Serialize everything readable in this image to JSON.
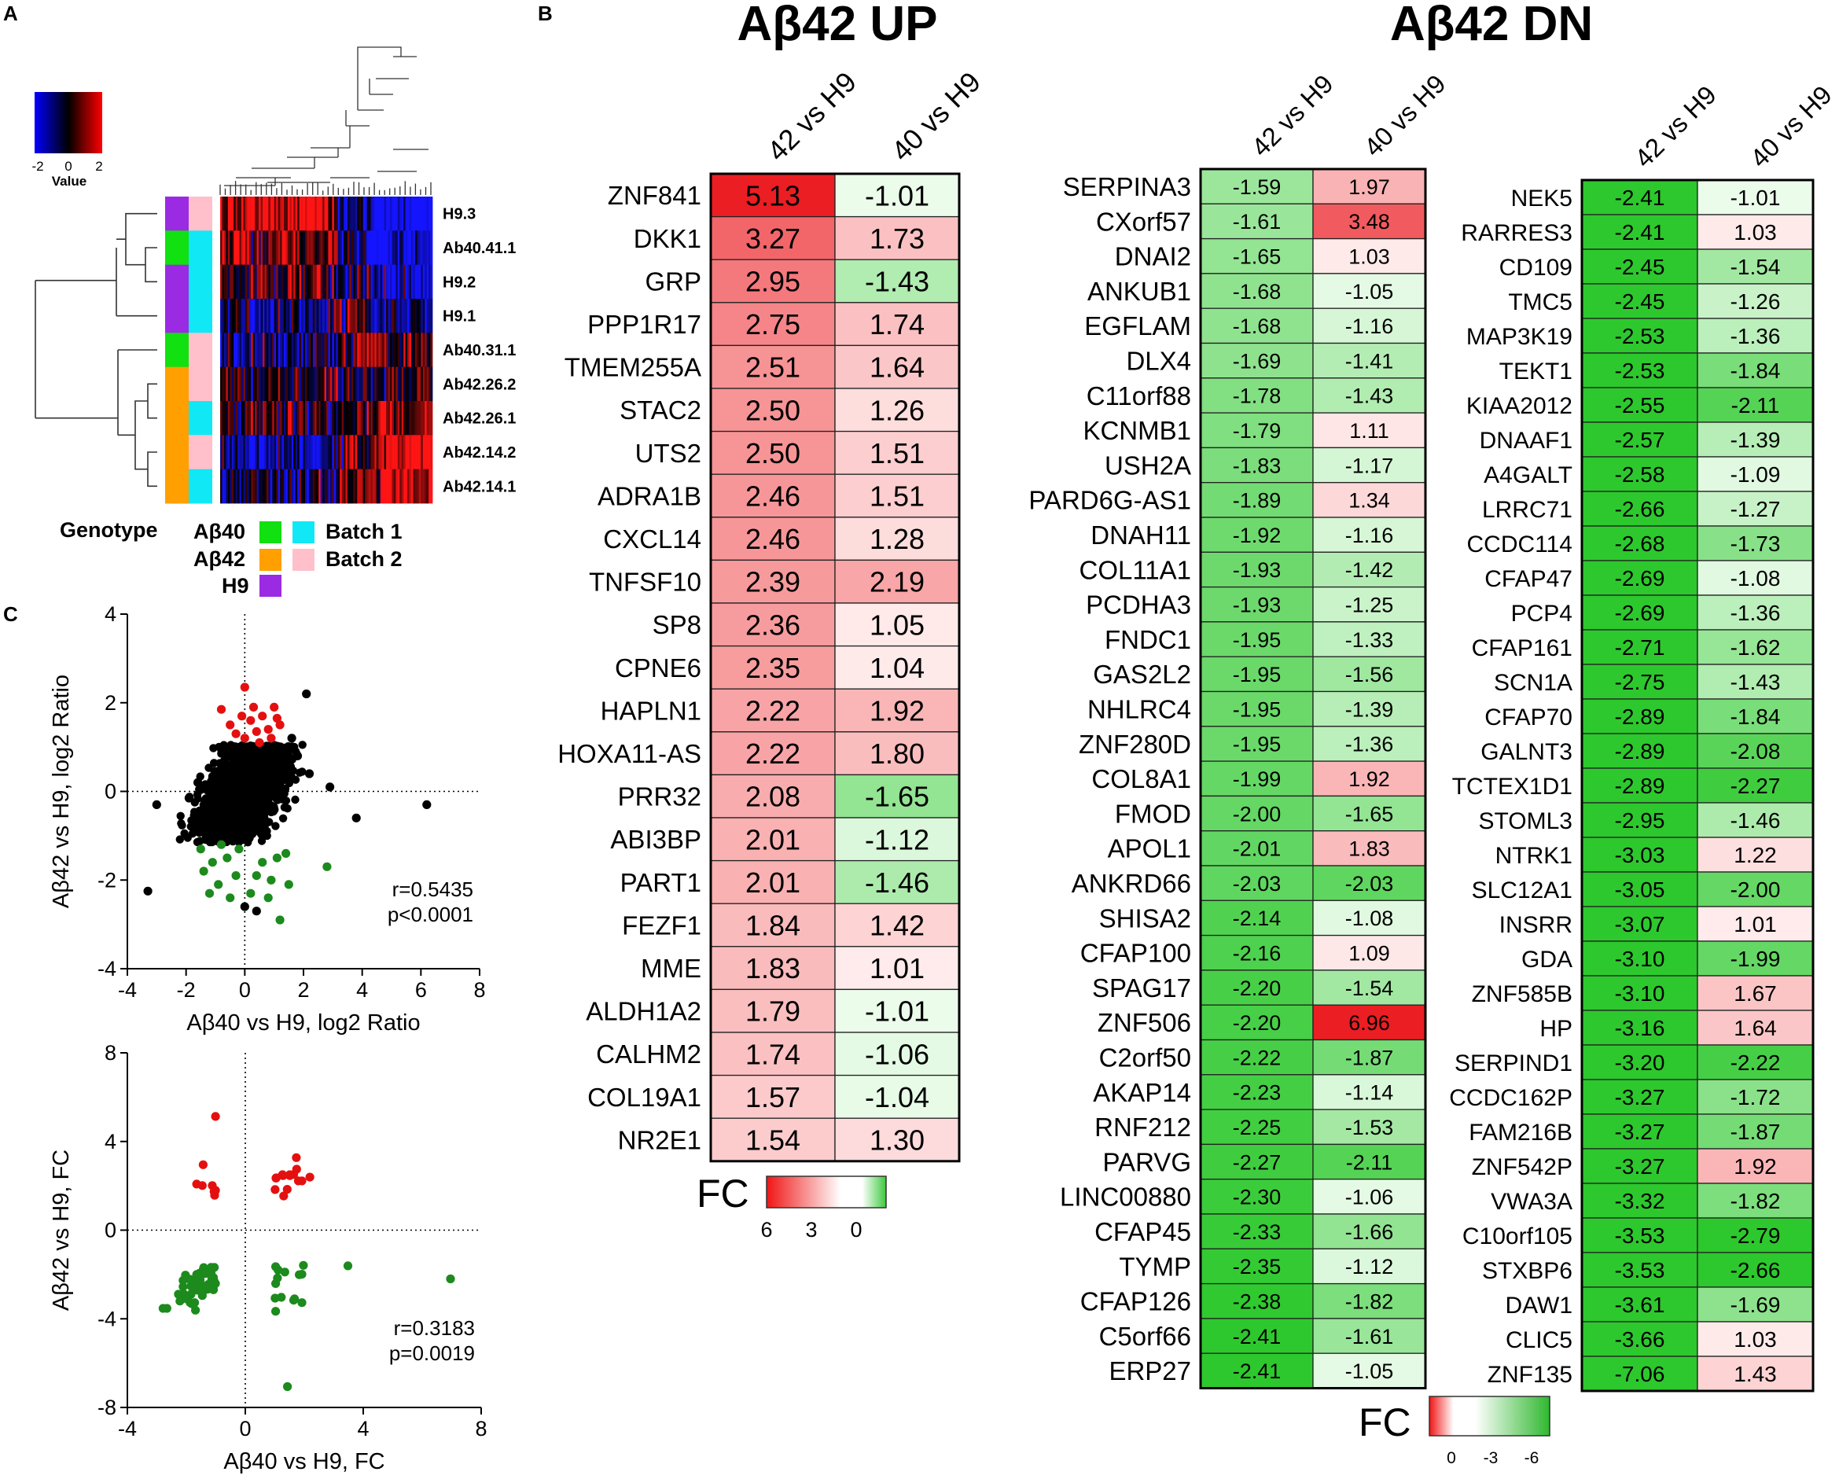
{
  "panels": {
    "a": "A",
    "b": "B",
    "c": "C"
  },
  "colors": {
    "blue": "#1a1aff",
    "red": "#ff1a1a",
    "green": "#1f8a1f",
    "purple": "#9a2be2",
    "orange": "#ffa000",
    "cyan": "#11e8f5",
    "pink": "#ffc0cb",
    "lime": "#11e011"
  },
  "chart_data": [
    {
      "type": "heatmap",
      "id": "panel_a",
      "colorbar": {
        "label": "Value",
        "ticks": [
          "-2",
          "0",
          "2"
        ],
        "range": [
          -2,
          2
        ]
      },
      "rows": [
        "H9.3",
        "Ab40.41.1",
        "H9.2",
        "H9.1",
        "Ab40.31.1",
        "Ab42.26.2",
        "Ab42.26.1",
        "Ab42.14.2",
        "Ab42.14.1"
      ],
      "row_genotype": [
        "H9",
        "Aβ40",
        "H9",
        "H9",
        "Aβ40",
        "Aβ42",
        "Aβ42",
        "Aβ42",
        "Aβ42"
      ],
      "row_batch": [
        "Batch 2",
        "Batch 1",
        "Batch 1",
        "Batch 1",
        "Batch 2",
        "Batch 2",
        "Batch 1",
        "Batch 2",
        "Batch 1"
      ],
      "legend": {
        "genotype_title": "Genotype",
        "genotypes": [
          "Aβ40",
          "Aβ42",
          "H9"
        ],
        "batches": [
          "Batch 1",
          "Batch 2"
        ]
      }
    },
    {
      "type": "table",
      "id": "b_up",
      "title": "Aβ42 UP",
      "columns": [
        "42 vs H9",
        "40 vs H9"
      ],
      "genes": [
        "ZNF841",
        "DKK1",
        "GRP",
        "PPP1R17",
        "TMEM255A",
        "STAC2",
        "UTS2",
        "ADRA1B",
        "CXCL14",
        "TNFSF10",
        "SP8",
        "CPNE6",
        "HAPLN1",
        "HOXA11-AS",
        "PRR32",
        "ABI3BP",
        "PART1",
        "FEZF1",
        "MME",
        "ALDH1A2",
        "CALHM2",
        "COL19A1",
        "NR2E1"
      ],
      "col1": [
        "5.13",
        "3.27",
        "2.95",
        "2.75",
        "2.51",
        "2.50",
        "2.50",
        "2.46",
        "2.46",
        "2.39",
        "2.36",
        "2.35",
        "2.22",
        "2.22",
        "2.08",
        "2.01",
        "2.01",
        "1.84",
        "1.83",
        "1.79",
        "1.74",
        "1.57",
        "1.54"
      ],
      "col2": [
        "-1.01",
        "1.73",
        "-1.43",
        "1.74",
        "1.64",
        "1.26",
        "1.51",
        "1.51",
        "1.28",
        "2.19",
        "1.05",
        "1.04",
        "1.92",
        "1.80",
        "-1.65",
        "-1.12",
        "-1.46",
        "1.42",
        "1.01",
        "-1.01",
        "-1.06",
        "-1.04",
        "1.30"
      ],
      "legend": {
        "label": "FC",
        "ticks": [
          "6",
          "3",
          "0"
        ]
      }
    },
    {
      "type": "table",
      "id": "b_dn1",
      "title": "Aβ42 DN",
      "columns": [
        "42 vs H9",
        "40 vs H9"
      ],
      "genes": [
        "SERPINA3",
        "CXorf57",
        "DNAI2",
        "ANKUB1",
        "EGFLAM",
        "DLX4",
        "C11orf88",
        "KCNMB1",
        "USH2A",
        "PARD6G-AS1",
        "DNAH11",
        "COL11A1",
        "PCDHA3",
        "FNDC1",
        "GAS2L2",
        "NHLRC4",
        "ZNF280D",
        "COL8A1",
        "FMOD",
        "APOL1",
        "ANKRD66",
        "SHISA2",
        "CFAP100",
        "SPAG17",
        "ZNF506",
        "C2orf50",
        "AKAP14",
        "RNF212",
        "PARVG",
        "LINC00880",
        "CFAP45",
        "TYMP",
        "CFAP126",
        "C5orf66",
        "ERP27"
      ],
      "col1": [
        "-1.59",
        "-1.61",
        "-1.65",
        "-1.68",
        "-1.68",
        "-1.69",
        "-1.78",
        "-1.79",
        "-1.83",
        "-1.89",
        "-1.92",
        "-1.93",
        "-1.93",
        "-1.95",
        "-1.95",
        "-1.95",
        "-1.95",
        "-1.99",
        "-2.00",
        "-2.01",
        "-2.03",
        "-2.14",
        "-2.16",
        "-2.20",
        "-2.20",
        "-2.22",
        "-2.23",
        "-2.25",
        "-2.27",
        "-2.30",
        "-2.33",
        "-2.35",
        "-2.38",
        "-2.41",
        "-2.41"
      ],
      "col2": [
        "1.97",
        "3.48",
        "1.03",
        "-1.05",
        "-1.16",
        "-1.41",
        "-1.43",
        "1.11",
        "-1.17",
        "1.34",
        "-1.16",
        "-1.42",
        "-1.25",
        "-1.33",
        "-1.56",
        "-1.39",
        "-1.36",
        "1.92",
        "-1.65",
        "1.83",
        "-2.03",
        "-1.08",
        "1.09",
        "-1.54",
        "6.96",
        "-1.87",
        "-1.14",
        "-1.53",
        "-2.11",
        "-1.06",
        "-1.66",
        "-1.12",
        "-1.82",
        "-1.61",
        "-1.05"
      ],
      "legend": {
        "label": "FC",
        "ticks": [
          "0",
          "-3",
          "-6"
        ]
      }
    },
    {
      "type": "table",
      "id": "b_dn2",
      "columns": [
        "42 vs H9",
        "40 vs H9"
      ],
      "genes": [
        "NEK5",
        "RARRES3",
        "CD109",
        "TMC5",
        "MAP3K19",
        "TEKT1",
        "KIAA2012",
        "DNAAF1",
        "A4GALT",
        "LRRC71",
        "CCDC114",
        "CFAP47",
        "PCP4",
        "CFAP161",
        "SCN1A",
        "CFAP70",
        "GALNT3",
        "TCTEX1D1",
        "STOML3",
        "NTRK1",
        "SLC12A1",
        "INSRR",
        "GDA",
        "ZNF585B",
        "HP",
        "SERPIND1",
        "CCDC162P",
        "FAM216B",
        "ZNF542P",
        "VWA3A",
        "C10orf105",
        "STXBP6",
        "DAW1",
        "CLIC5",
        "ZNF135"
      ],
      "col1": [
        "-2.41",
        "-2.41",
        "-2.45",
        "-2.45",
        "-2.53",
        "-2.53",
        "-2.55",
        "-2.57",
        "-2.58",
        "-2.66",
        "-2.68",
        "-2.69",
        "-2.69",
        "-2.71",
        "-2.75",
        "-2.89",
        "-2.89",
        "-2.89",
        "-2.95",
        "-3.03",
        "-3.05",
        "-3.07",
        "-3.10",
        "-3.10",
        "-3.16",
        "-3.20",
        "-3.27",
        "-3.27",
        "-3.27",
        "-3.32",
        "-3.53",
        "-3.53",
        "-3.61",
        "-3.66",
        "-7.06"
      ],
      "col2": [
        "-1.01",
        "1.03",
        "-1.54",
        "-1.26",
        "-1.36",
        "-1.84",
        "-2.11",
        "-1.39",
        "-1.09",
        "-1.27",
        "-1.73",
        "-1.08",
        "-1.36",
        "-1.62",
        "-1.43",
        "-1.84",
        "-2.08",
        "-2.27",
        "-1.46",
        "1.22",
        "-2.00",
        "1.01",
        "-1.99",
        "1.67",
        "1.64",
        "-2.22",
        "-1.72",
        "-1.87",
        "1.92",
        "-1.82",
        "-2.79",
        "-2.66",
        "-1.69",
        "1.03",
        "1.43"
      ]
    },
    {
      "type": "scatter",
      "id": "c_top",
      "xlabel": "Aβ40 vs H9, log2 Ratio",
      "ylabel": "Aβ42 vs H9, log2 Ratio",
      "xlim": [
        -4,
        8
      ],
      "ylim": [
        -4,
        4
      ],
      "xticks": [
        "-4",
        "-2",
        "0",
        "2",
        "4",
        "6",
        "8"
      ],
      "yticks": [
        "-4",
        "-2",
        "0",
        "2",
        "4"
      ],
      "annotation": [
        "r=0.5435",
        "p<0.0001"
      ],
      "red_points": [
        [
          0,
          2.35
        ],
        [
          -0.8,
          1.85
        ],
        [
          -0.5,
          1.5
        ],
        [
          -0.3,
          1.3
        ],
        [
          0.2,
          1.6
        ],
        [
          0.4,
          1.35
        ],
        [
          0.6,
          1.7
        ],
        [
          0.8,
          1.4
        ],
        [
          1.0,
          1.9
        ],
        [
          1.2,
          1.5
        ],
        [
          0.0,
          1.2
        ],
        [
          0.5,
          1.1
        ],
        [
          -0.1,
          1.7
        ],
        [
          0.9,
          1.2
        ],
        [
          0.3,
          1.9
        ],
        [
          1.1,
          1.65
        ]
      ],
      "green_points": [
        [
          -1.4,
          -1.8
        ],
        [
          -1.1,
          -1.6
        ],
        [
          -0.9,
          -2.1
        ],
        [
          -0.6,
          -1.5
        ],
        [
          -0.3,
          -1.9
        ],
        [
          -1.2,
          -2.3
        ],
        [
          -0.5,
          -2.4
        ],
        [
          -0.2,
          -1.3
        ],
        [
          0.6,
          -1.6
        ],
        [
          0.9,
          -2.0
        ],
        [
          1.1,
          -1.5
        ],
        [
          0.8,
          -2.4
        ],
        [
          0.4,
          -1.9
        ],
        [
          1.4,
          -1.4
        ],
        [
          1.5,
          -2.1
        ],
        [
          2.8,
          -1.7
        ],
        [
          -1.5,
          -1.3
        ],
        [
          0.2,
          -2.3
        ],
        [
          -0.8,
          -1.2
        ],
        [
          1.2,
          -2.9
        ]
      ],
      "black_points": [
        [
          -3.3,
          -2.25
        ],
        [
          -3.0,
          -0.3
        ],
        [
          -1.9,
          -0.15
        ],
        [
          -1.6,
          0.2
        ],
        [
          -1.5,
          -0.6
        ],
        [
          2.1,
          2.2
        ],
        [
          2.9,
          0.1
        ],
        [
          3.8,
          -0.6
        ],
        [
          6.2,
          -0.3
        ],
        [
          0,
          -2.6
        ],
        [
          0.4,
          -2.7
        ],
        [
          -0.2,
          -1.0
        ],
        [
          1.6,
          1.2
        ],
        [
          1.8,
          0.8
        ],
        [
          2.2,
          0.4
        ]
      ]
    },
    {
      "type": "scatter",
      "id": "c_bottom",
      "xlabel": "Aβ40 vs H9, FC",
      "ylabel": "Aβ42 vs H9, FC",
      "xlim": [
        -4,
        8
      ],
      "ylim": [
        -8,
        8
      ],
      "xticks": [
        "-4",
        "0",
        "4",
        "8"
      ],
      "yticks": [
        "-8",
        "-4",
        "0",
        "4",
        "8"
      ],
      "annotation": [
        "r=0.3183",
        "p=0.0019"
      ],
      "red_points": [
        [
          -1.01,
          5.13
        ],
        [
          -1.43,
          2.95
        ],
        [
          -1.65,
          2.08
        ],
        [
          -1.12,
          2.01
        ],
        [
          -1.46,
          2.01
        ],
        [
          -1.01,
          1.79
        ],
        [
          -1.06,
          1.74
        ],
        [
          -1.04,
          1.57
        ],
        [
          1.73,
          3.27
        ],
        [
          1.74,
          2.75
        ],
        [
          1.64,
          2.51
        ],
        [
          1.26,
          2.5
        ],
        [
          1.51,
          2.5
        ],
        [
          1.51,
          2.46
        ],
        [
          1.28,
          2.46
        ],
        [
          2.19,
          2.39
        ],
        [
          1.05,
          2.36
        ],
        [
          1.04,
          2.35
        ],
        [
          1.92,
          2.22
        ],
        [
          1.8,
          2.22
        ],
        [
          1.42,
          1.84
        ],
        [
          1.01,
          1.83
        ],
        [
          1.3,
          1.54
        ]
      ],
      "green_points": [
        [
          -1.05,
          -1.68
        ],
        [
          -1.16,
          -1.68
        ],
        [
          -1.41,
          -1.69
        ],
        [
          -1.43,
          -1.78
        ],
        [
          -1.17,
          -1.83
        ],
        [
          -1.16,
          -1.92
        ],
        [
          -1.42,
          -1.93
        ],
        [
          -1.25,
          -1.93
        ],
        [
          -1.33,
          -1.95
        ],
        [
          -1.56,
          -1.95
        ],
        [
          -1.39,
          -1.95
        ],
        [
          -1.36,
          -1.95
        ],
        [
          -1.65,
          -2.0
        ],
        [
          -2.03,
          -2.03
        ],
        [
          -1.08,
          -2.14
        ],
        [
          -1.54,
          -2.2
        ],
        [
          -1.87,
          -2.22
        ],
        [
          -1.14,
          -2.23
        ],
        [
          -1.53,
          -2.25
        ],
        [
          -2.11,
          -2.27
        ],
        [
          -1.06,
          -2.3
        ],
        [
          -1.66,
          -2.33
        ],
        [
          -1.12,
          -2.35
        ],
        [
          -1.82,
          -2.38
        ],
        [
          -1.61,
          -2.41
        ],
        [
          -1.05,
          -2.41
        ],
        [
          -1.01,
          -2.41
        ],
        [
          -1.54,
          -2.45
        ],
        [
          -1.26,
          -2.45
        ],
        [
          -1.36,
          -2.53
        ],
        [
          -1.84,
          -2.53
        ],
        [
          -2.11,
          -2.55
        ],
        [
          -1.39,
          -2.57
        ],
        [
          -1.09,
          -2.58
        ],
        [
          -1.27,
          -2.66
        ],
        [
          -1.73,
          -2.68
        ],
        [
          -1.08,
          -2.69
        ],
        [
          -1.36,
          -2.69
        ],
        [
          -1.62,
          -2.71
        ],
        [
          -1.43,
          -2.75
        ],
        [
          -1.84,
          -2.89
        ],
        [
          -2.08,
          -2.89
        ],
        [
          -2.27,
          -2.89
        ],
        [
          -1.46,
          -2.95
        ],
        [
          -2.0,
          -3.05
        ],
        [
          -1.99,
          -3.1
        ],
        [
          -2.22,
          -3.2
        ],
        [
          -1.72,
          -3.27
        ],
        [
          -1.87,
          -3.27
        ],
        [
          -1.82,
          -3.32
        ],
        [
          -2.79,
          -3.53
        ],
        [
          -2.66,
          -3.53
        ],
        [
          -1.69,
          -3.61
        ],
        [
          1.97,
          -1.59
        ],
        [
          3.48,
          -1.61
        ],
        [
          1.03,
          -1.65
        ],
        [
          1.11,
          -1.79
        ],
        [
          1.34,
          -1.89
        ],
        [
          1.92,
          -1.99
        ],
        [
          1.83,
          -2.01
        ],
        [
          1.09,
          -2.16
        ],
        [
          6.96,
          -2.2
        ],
        [
          1.03,
          -2.41
        ],
        [
          1.22,
          -3.03
        ],
        [
          1.01,
          -3.07
        ],
        [
          1.67,
          -3.1
        ],
        [
          1.64,
          -3.16
        ],
        [
          1.92,
          -3.27
        ],
        [
          1.03,
          -3.66
        ],
        [
          1.43,
          -7.06
        ]
      ],
      "black_points": []
    }
  ]
}
